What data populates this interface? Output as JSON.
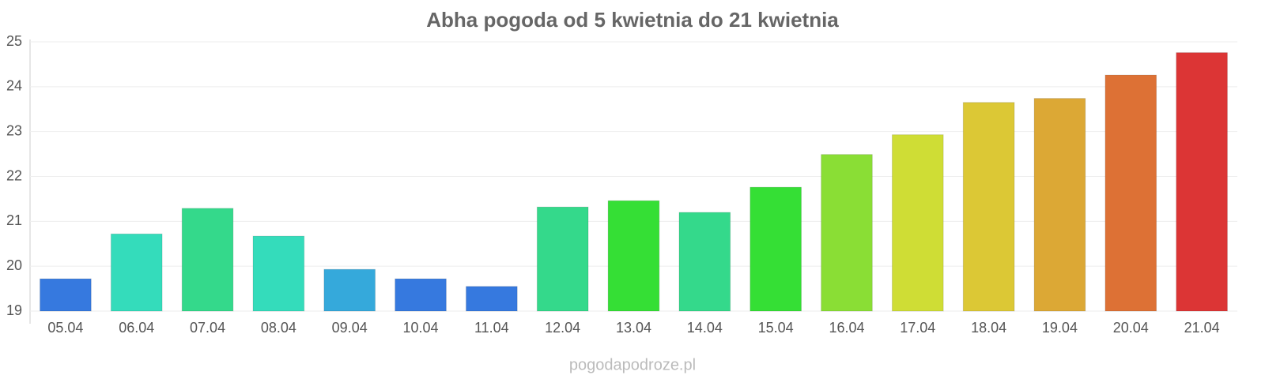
{
  "chart_data": {
    "type": "bar",
    "title": "Abha pogoda od 5 kwietnia do 21 kwietnia",
    "categories": [
      "05.04",
      "06.04",
      "07.04",
      "08.04",
      "09.04",
      "10.04",
      "11.04",
      "12.04",
      "13.04",
      "14.04",
      "15.04",
      "16.04",
      "17.04",
      "18.04",
      "19.04",
      "20.04",
      "21.04"
    ],
    "values": [
      19.72,
      20.72,
      21.29,
      20.67,
      19.93,
      19.72,
      19.55,
      21.32,
      21.46,
      21.2,
      21.76,
      22.49,
      22.93,
      23.65,
      23.74,
      24.26,
      24.76
    ],
    "colors": [
      "#3679df",
      "#34dcbb",
      "#34d98b",
      "#34dcbb",
      "#35a9db",
      "#3679df",
      "#3679df",
      "#34d98b",
      "#35df35",
      "#34d98b",
      "#35df35",
      "#8ade35",
      "#cfdd35",
      "#dcc835",
      "#dca835",
      "#dd7135",
      "#dc3535"
    ],
    "ylim": [
      19,
      25
    ],
    "yticks": [
      19,
      20,
      21,
      22,
      23,
      24,
      25
    ],
    "grid": true,
    "watermark": "pogodapodroze.pl"
  }
}
